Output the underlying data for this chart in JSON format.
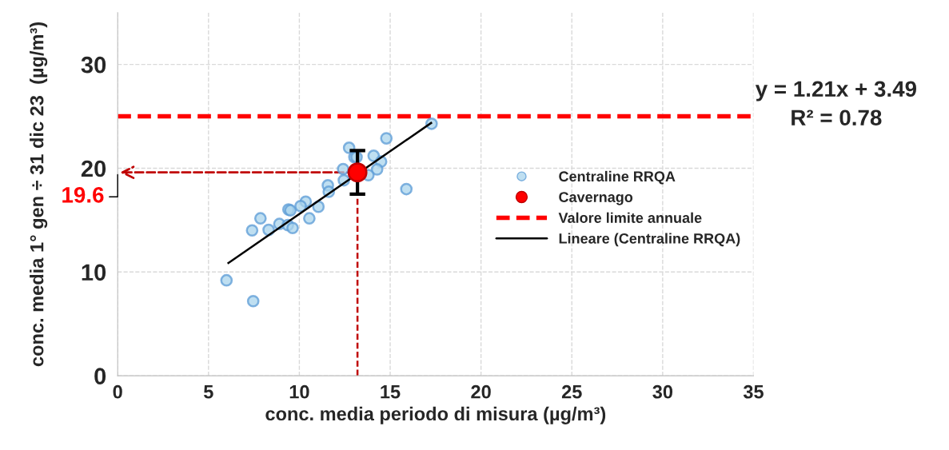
{
  "chart_data": {
    "type": "scatter",
    "xlabel": "conc. media periodo di misura (µg/m³)",
    "ylabel": "conc. media 1° gen ÷ 31 dic 23  (µg/m³)",
    "xlim": [
      0,
      35
    ],
    "xticks": [
      0,
      5,
      10,
      15,
      20,
      25,
      30,
      35
    ],
    "ylim": [
      0,
      35
    ],
    "yticks": [
      0,
      10,
      20,
      30
    ],
    "grid": true,
    "legend": "right",
    "marker": "circle",
    "series": [
      {
        "name": "Centraline RRQA",
        "color": "#a9d4ec",
        "x": [
          17.28,
          14.79,
          12.74,
          13.03,
          13.15,
          14.09,
          14.5,
          12.41,
          14.28,
          13.8,
          12.45,
          15.89,
          11.57,
          11.62,
          9.4,
          9.51,
          10.35,
          10.07,
          11.05,
          7.86,
          10.55,
          7.4,
          8.31,
          8.9,
          9.37,
          9.63,
          5.99,
          7.46
        ],
        "values": [
          24.29,
          22.88,
          21.97,
          21.07,
          21.07,
          21.2,
          20.64,
          19.92,
          19.89,
          19.33,
          18.84,
          17.99,
          18.35,
          17.73,
          16.02,
          15.94,
          16.78,
          16.35,
          16.29,
          15.17,
          15.17,
          14.01,
          14.06,
          14.63,
          14.52,
          14.24,
          9.2,
          7.19
        ]
      },
      {
        "name": "Cavernago",
        "color": "#ff0000",
        "x": [
          13.2
        ],
        "values": [
          19.6
        ],
        "errors": [
          2.1
        ]
      },
      {
        "type": "line",
        "color": "#c00000",
        "marker": "none",
        "line_style": "dashed",
        "x": [
          13.2,
          13.2
        ],
        "values": [
          0,
          19.6
        ]
      },
      {
        "name": "Lineare (Centraline RRQA)",
        "type": "line",
        "color": "#000000",
        "marker": "none",
        "x": [
          6.05,
          17.3
        ],
        "values": [
          10.81,
          24.42
        ]
      }
    ],
    "ref_lines": [
      {
        "axis": "y",
        "value": 25,
        "label": "Valore limite annuale",
        "color": "#ff0000",
        "line_style": "dashed"
      }
    ],
    "annotations": [
      {
        "text": "19.6",
        "x": 13.2,
        "y": 19.6
      },
      "y = 1.21x + 3.49\nR² = 0.78"
    ]
  }
}
